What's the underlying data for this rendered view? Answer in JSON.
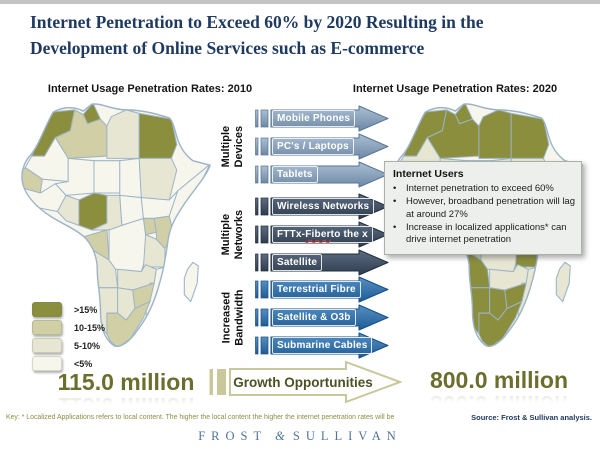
{
  "title": {
    "line1": "Internet Penetration to Exceed 60% by 2020 Resulting  in the",
    "line2": "Development of Online Services such as E-commerce"
  },
  "maps": {
    "left": {
      "header": "Internet Usage Penetration Rates: 2010",
      "total": "115.0 million"
    },
    "right": {
      "header": "Internet Usage Penetration Rates: 2020",
      "total": "800.0 million"
    }
  },
  "legend_order": [
    "gt15",
    "b10_15",
    "b5_10",
    "lt5"
  ],
  "buckets": {
    "gt15": {
      "label": ">15%",
      "color": "#8b8e3d"
    },
    "b10_15": {
      "label": "10-15%",
      "color": "#d0cfa5"
    },
    "b5_10": {
      "label": "5-10%",
      "color": "#e7e6d3"
    },
    "lt5": {
      "label": "<5%",
      "color": "#f7f6ed"
    }
  },
  "map_style": {
    "border_color": "#9db4c8"
  },
  "region_rates_2010": {
    "morocco": "gt15",
    "tunisia": "gt15",
    "egypt": "gt15",
    "nigeria": "gt15",
    "algeria": "b10_15",
    "kenya": "b10_15",
    "southafrica": "b10_15",
    "zimbabwe": "b10_15",
    "senegal": "b10_15",
    "gabon": "b10_15",
    "uganda": "b10_15",
    "libya": "b5_10",
    "sudan": "b5_10",
    "cameroon": "b5_10",
    "tanzania": "b5_10",
    "angola": "b5_10",
    "zambia": "b5_10",
    "namibia": "b5_10",
    "botswana": "b5_10",
    "ghana": "b5_10",
    "mauritania": "lt5",
    "mali": "lt5",
    "niger": "lt5",
    "chad": "lt5",
    "guinea": "lt5",
    "car": "lt5",
    "ethiopia": "lt5",
    "horn": "lt5",
    "drc": "lt5",
    "mozambique": "lt5",
    "madagascar": "lt5"
  },
  "region_rates_2020": {
    "morocco": "gt15",
    "tunisia": "gt15",
    "algeria": "gt15",
    "libya": "gt15",
    "egypt": "gt15",
    "senegal": "gt15",
    "ghana": "gt15",
    "nigeria": "gt15",
    "uganda": "gt15",
    "kenya": "gt15",
    "tanzania": "gt15",
    "angola": "gt15",
    "namibia": "gt15",
    "botswana": "gt15",
    "southafrica": "gt15",
    "zimbabwe": "gt15",
    "guinea": "b10_15",
    "gabon": "b10_15",
    "cameroon": "b10_15",
    "mauritania": "b5_10",
    "mali": "b5_10",
    "niger": "b5_10",
    "chad": "b5_10",
    "sudan": "b5_10",
    "car": "b5_10",
    "ethiopia": "b5_10",
    "horn": "b5_10",
    "drc": "b5_10",
    "zambia": "b5_10",
    "mozambique": "b5_10",
    "madagascar": "b5_10"
  },
  "arrow_groups": [
    {
      "label_line1": "Multiple",
      "label_line2": "Devices",
      "colors": {
        "light": "#aabfd4",
        "dark": "#6e88a4",
        "stroke": "#5a7590"
      },
      "items": [
        "Mobile Phones",
        "PC's / Laptops",
        "Tablets"
      ]
    },
    {
      "label_line1": "Multiple",
      "label_line2": "Networks",
      "colors": {
        "light": "#5d6d82",
        "dark": "#2e3c4e",
        "stroke": "#202d3b"
      },
      "items": [
        "Wireless Networks",
        "FTTx- Fiber to the x",
        "Satellite"
      ],
      "spellcheck_word": "Fiber"
    },
    {
      "label_line1": "Increased",
      "label_line2": "Bandwidth",
      "colors": {
        "light": "#5590c2",
        "dark": "#1e5c97",
        "stroke": "#174d82"
      },
      "items": [
        "Terrestrial Fibre",
        "Satellite & O3b",
        "Submarine Cables"
      ]
    }
  ],
  "info_box": {
    "heading": "Internet Users",
    "bullets": [
      "Internet penetration to exceed 60%",
      "However, broadband penetration will lag at around 27%",
      "Increase in localized applications* can drive internet penetration"
    ]
  },
  "growth_arrow": {
    "label": "Growth Opportunities",
    "outline": "#c9c89b",
    "fill": "#ffffff",
    "text_color": "#4c5124"
  },
  "footer": {
    "key_note": "Key: * Localized Applications refers to local content. The higher the local content the higher the internet penetration rates will be",
    "source": "Source: Frost & Sullivan analysis.",
    "logo": {
      "left": "FROST",
      "amp": "&",
      "right": "SULLIVAN"
    }
  }
}
